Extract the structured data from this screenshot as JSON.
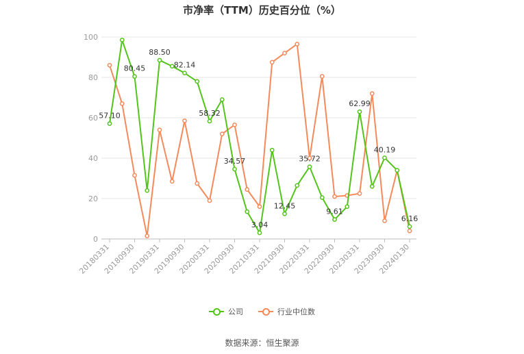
{
  "title": "市净率（TTM）历史百分位（%）",
  "source": "数据来源：恒生聚源",
  "colors": {
    "company": "#52c41a",
    "industry": "#f5895a",
    "grid": "#e6e6e6",
    "axis": "#bbbbbb",
    "label": "#999999"
  },
  "legend": {
    "company": "公司",
    "industry": "行业中位数"
  },
  "chart_data": {
    "type": "line",
    "ylim": [
      0,
      100
    ],
    "yticks": [
      0,
      20,
      40,
      60,
      80,
      100
    ],
    "x": [
      "20180331",
      "20180630",
      "20180930",
      "20181231",
      "20190331",
      "20190630",
      "20190930",
      "20191231",
      "20200331",
      "20200630",
      "20200930",
      "20201231",
      "20210331",
      "20210630",
      "20210930",
      "20211231",
      "20220331",
      "20220630",
      "20220930",
      "20221231",
      "20230331",
      "20230630",
      "20230930",
      "20231231",
      "20240130"
    ],
    "xtick_labels": [
      "20180331",
      "20180930",
      "20190331",
      "20190930",
      "20200331",
      "20200930",
      "20210331",
      "20210930",
      "20220331",
      "20220930",
      "20230331",
      "20230930",
      "20240130"
    ],
    "series": [
      {
        "name": "公司",
        "values": [
          57.1,
          98.5,
          80.45,
          24.0,
          88.5,
          85.5,
          82.14,
          78.0,
          58.32,
          69.0,
          34.57,
          13.5,
          3.04,
          44.0,
          12.45,
          26.5,
          35.72,
          20.5,
          9.61,
          16.0,
          62.99,
          26.0,
          40.19,
          34.0,
          6.16
        ]
      },
      {
        "name": "行业中位数",
        "values": [
          86.0,
          67.0,
          31.5,
          1.5,
          54.0,
          28.5,
          58.5,
          27.5,
          19.0,
          52.0,
          56.5,
          24.5,
          16.0,
          87.5,
          92.0,
          96.5,
          40.0,
          80.5,
          21.0,
          21.5,
          22.5,
          72.0,
          9.0,
          34.0,
          4.0
        ]
      }
    ],
    "data_labels": [
      {
        "index": 0,
        "text": "57.10"
      },
      {
        "index": 2,
        "text": "80.45"
      },
      {
        "index": 4,
        "text": "88.50"
      },
      {
        "index": 6,
        "text": "82.14"
      },
      {
        "index": 8,
        "text": "58.32"
      },
      {
        "index": 10,
        "text": "34.57"
      },
      {
        "index": 12,
        "text": "3.04"
      },
      {
        "index": 14,
        "text": "12.45"
      },
      {
        "index": 16,
        "text": "35.72"
      },
      {
        "index": 18,
        "text": "9.61"
      },
      {
        "index": 20,
        "text": "62.99"
      },
      {
        "index": 22,
        "text": "40.19"
      },
      {
        "index": 24,
        "text": "6.16"
      }
    ]
  }
}
